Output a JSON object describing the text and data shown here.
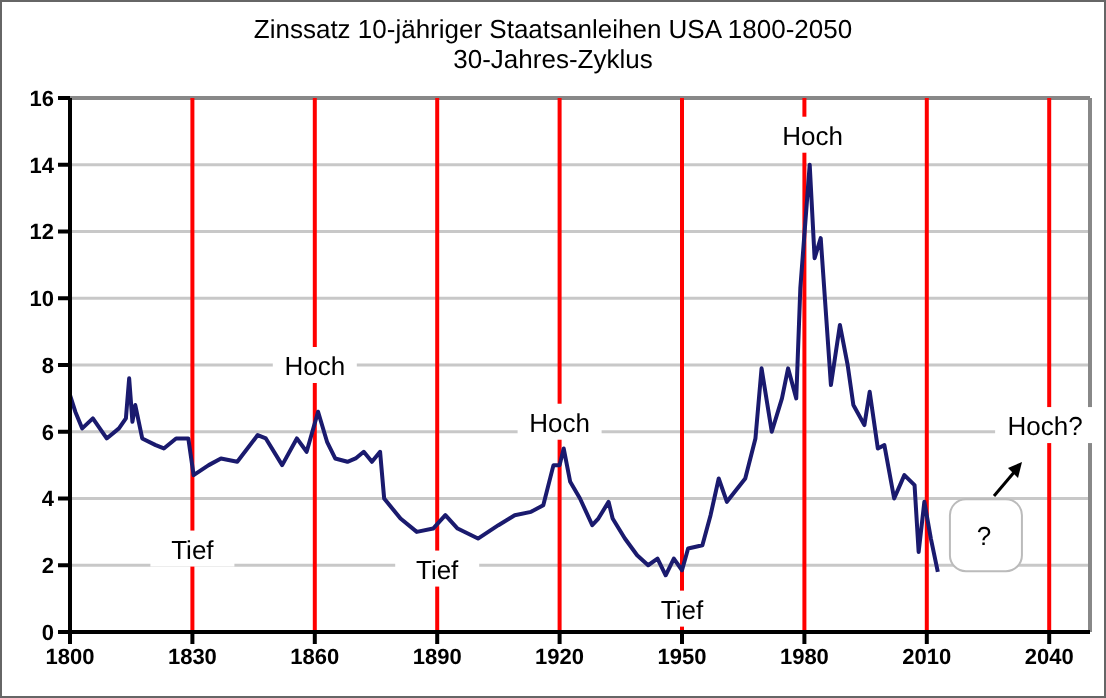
{
  "chart_data": {
    "type": "line",
    "title": "Zinssatz 10-jähriger Staatsanleihen USA 1800-2050",
    "subtitle": "30-Jahres-Zyklus",
    "x": [
      1800,
      1801.3,
      1803,
      1805.6,
      1809,
      1812,
      1813.7,
      1814.5,
      1815.3,
      1816,
      1817.7,
      1821,
      1823,
      1826,
      1829,
      1830.3,
      1834,
      1837,
      1841,
      1846,
      1848,
      1852,
      1855.6,
      1858,
      1860.8,
      1863,
      1865,
      1868,
      1870,
      1872,
      1874,
      1876,
      1877,
      1881,
      1885,
      1889,
      1892,
      1895,
      1900,
      1905,
      1909,
      1913,
      1916,
      1918.5,
      1920,
      1921,
      1922.6,
      1925,
      1928,
      1929.5,
      1932,
      1933,
      1936,
      1939,
      1941.7,
      1944,
      1946,
      1948,
      1950,
      1951.5,
      1955,
      1957,
      1959,
      1961,
      1965.5,
      1968,
      1969.5,
      1972,
      1974.5,
      1976,
      1978,
      1979,
      1981.3,
      1982.5,
      1984,
      1986.5,
      1988.7,
      1990.6,
      1992,
      1994.7,
      1996,
      1998,
      1999.6,
      2002,
      2004.5,
      2007,
      2008,
      2009.4,
      2011,
      2012.7
    ],
    "series": [
      {
        "color": "#1a1a6e",
        "values": [
          7.1,
          6.6,
          6.1,
          6.4,
          5.8,
          6.1,
          6.4,
          7.6,
          6.3,
          6.8,
          5.8,
          5.6,
          5.5,
          5.8,
          5.8,
          4.7,
          5.0,
          5.2,
          5.1,
          5.9,
          5.8,
          5.0,
          5.8,
          5.4,
          6.6,
          5.7,
          5.2,
          5.1,
          5.2,
          5.4,
          5.1,
          5.4,
          4.0,
          3.4,
          3.0,
          3.1,
          3.5,
          3.1,
          2.8,
          3.2,
          3.5,
          3.6,
          3.8,
          5.0,
          5.0,
          5.5,
          4.5,
          4.0,
          3.2,
          3.4,
          3.9,
          3.4,
          2.8,
          2.3,
          2.0,
          2.2,
          1.7,
          2.2,
          1.85,
          2.5,
          2.6,
          3.5,
          4.6,
          3.9,
          4.6,
          5.8,
          7.9,
          6.0,
          7.0,
          7.9,
          7.0,
          10.3,
          14.0,
          11.2,
          11.8,
          7.4,
          9.2,
          8.0,
          6.8,
          6.2,
          7.2,
          5.5,
          5.6,
          4.0,
          4.7,
          4.4,
          2.4,
          3.9,
          2.8,
          1.8
        ]
      }
    ],
    "xlim": [
      1800,
      2050
    ],
    "xticks": [
      1800,
      1830,
      1860,
      1890,
      1920,
      1950,
      1980,
      2010,
      2040
    ],
    "ylim": [
      0,
      16
    ],
    "yticks": [
      0,
      2,
      4,
      6,
      8,
      10,
      12,
      14,
      16
    ],
    "grid": "y",
    "legend": false,
    "marker": "none",
    "line_style": "solid",
    "ref_lines": [
      {
        "axis": "x",
        "value": 1830,
        "color": "#ff0000"
      },
      {
        "axis": "x",
        "value": 1860,
        "color": "#ff0000"
      },
      {
        "axis": "x",
        "value": 1890,
        "color": "#ff0000"
      },
      {
        "axis": "x",
        "value": 1920,
        "color": "#ff0000"
      },
      {
        "axis": "x",
        "value": 1950,
        "color": "#ff0000"
      },
      {
        "axis": "x",
        "value": 1980,
        "color": "#ff0000"
      },
      {
        "axis": "x",
        "value": 2010,
        "color": "#ff0000"
      },
      {
        "axis": "x",
        "value": 2040,
        "color": "#ff0000"
      }
    ],
    "annotations": [
      {
        "text": "Tief",
        "x": 1830,
        "y": 2.5
      },
      {
        "text": "Hoch",
        "x": 1860,
        "y": 8
      },
      {
        "text": "Tief",
        "x": 1890,
        "y": 1.9
      },
      {
        "text": "Hoch",
        "x": 1920,
        "y": 6.3
      },
      {
        "text": "Tief",
        "x": 1950,
        "y": 0.7
      },
      {
        "text": "Hoch",
        "x": 1982,
        "y": 14.9
      },
      {
        "text": "?",
        "x": 2024,
        "y": 2.9
      },
      {
        "text": "Hoch?",
        "x": 2039,
        "y": 6.2
      }
    ]
  }
}
